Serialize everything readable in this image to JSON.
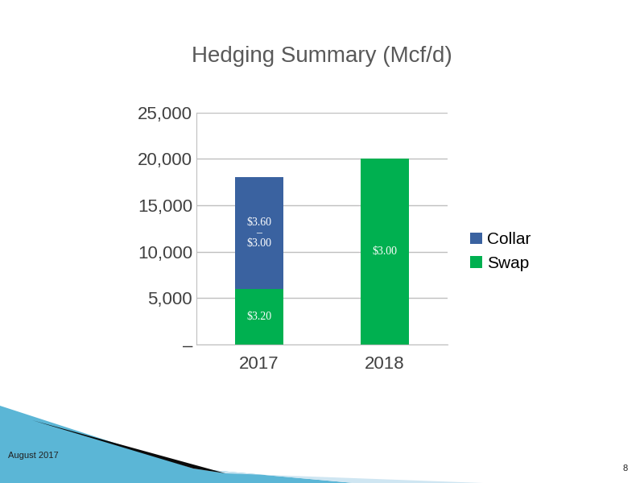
{
  "chart_data": {
    "type": "bar",
    "title": "Hedging Summary (Mcf/d)",
    "categories": [
      "2017",
      "2018"
    ],
    "stacked": true,
    "series": [
      {
        "name": "Swap",
        "color": "#00b050",
        "values": [
          6000,
          20000
        ],
        "labels": [
          "$3.20",
          "$3.00"
        ]
      },
      {
        "name": "Collar",
        "color": "#3a62a0",
        "values": [
          12000,
          0
        ],
        "labels": [
          "$3.60\n–\n$3.00",
          null
        ]
      }
    ],
    "ylim": [
      0,
      25000
    ],
    "yticks": [
      {
        "value": 0,
        "label": "–"
      },
      {
        "value": 5000,
        "label": "5,000"
      },
      {
        "value": 10000,
        "label": "10,000"
      },
      {
        "value": 15000,
        "label": "15,000"
      },
      {
        "value": 20000,
        "label": "20,000"
      },
      {
        "value": 25000,
        "label": "25,000"
      }
    ],
    "grid": true,
    "legend": "right"
  },
  "footer": {
    "date": "August 2017",
    "page": "8"
  }
}
